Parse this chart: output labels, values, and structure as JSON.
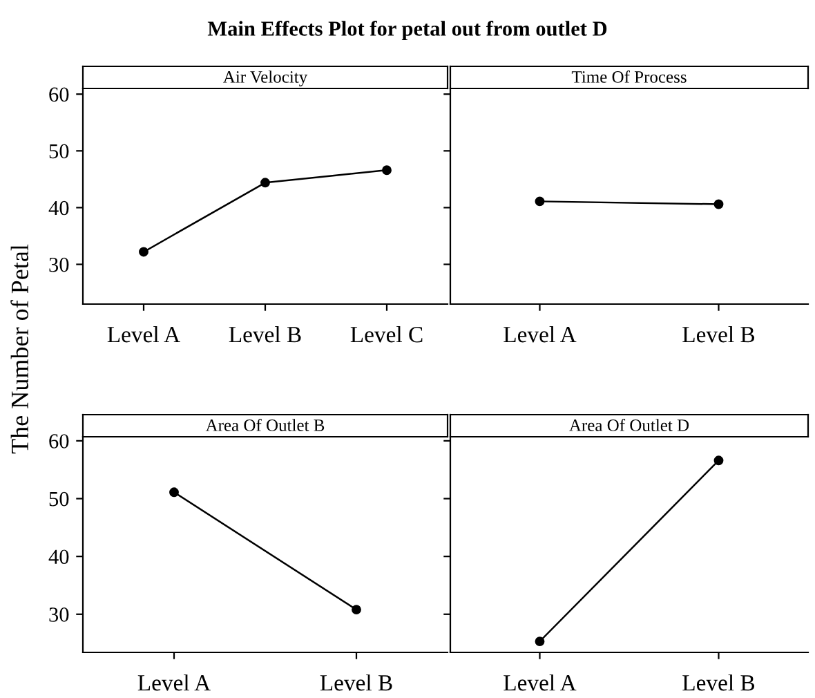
{
  "chart_data": [
    {
      "type": "line",
      "title": "Main Effects Plot for petal out from outlet D",
      "subtitle": "Air Velocity",
      "ylabel": "The Number of Petal",
      "categories": [
        "Level A",
        "Level B",
        "Level C"
      ],
      "series": [
        {
          "color": "#000000",
          "values": [
            32.2,
            44.4,
            46.6
          ]
        }
      ],
      "ylim": [
        23,
        61
      ],
      "yticks": [
        30,
        40,
        50,
        60
      ],
      "marker": "circle",
      "grid": false,
      "legend": false
    },
    {
      "type": "line",
      "subtitle": "Time Of Process",
      "categories": [
        "Level A",
        "Level B"
      ],
      "series": [
        {
          "color": "#000000",
          "values": [
            41.1,
            40.6
          ]
        }
      ],
      "ylim": [
        23,
        61
      ],
      "yticks": [
        30,
        40,
        50,
        60
      ],
      "tick_labels": "x",
      "marker": "circle",
      "grid": false,
      "legend": false
    },
    {
      "type": "line",
      "subtitle": "Area Of Outlet B",
      "categories": [
        "Level A",
        "Level B"
      ],
      "series": [
        {
          "color": "#000000",
          "values": [
            51.1,
            30.8
          ]
        }
      ],
      "ylim": [
        23.4,
        60.7
      ],
      "yticks": [
        30,
        40,
        50,
        60
      ],
      "marker": "circle",
      "grid": false,
      "legend": false
    },
    {
      "type": "line",
      "subtitle": "Area Of Outlet D",
      "categories": [
        "Level A",
        "Level B"
      ],
      "series": [
        {
          "color": "#000000",
          "values": [
            25.3,
            56.6
          ]
        }
      ],
      "ylim": [
        23.4,
        60.7
      ],
      "yticks": [
        30,
        40,
        50,
        60
      ],
      "tick_labels": "x",
      "marker": "circle",
      "grid": false,
      "legend": false
    }
  ]
}
